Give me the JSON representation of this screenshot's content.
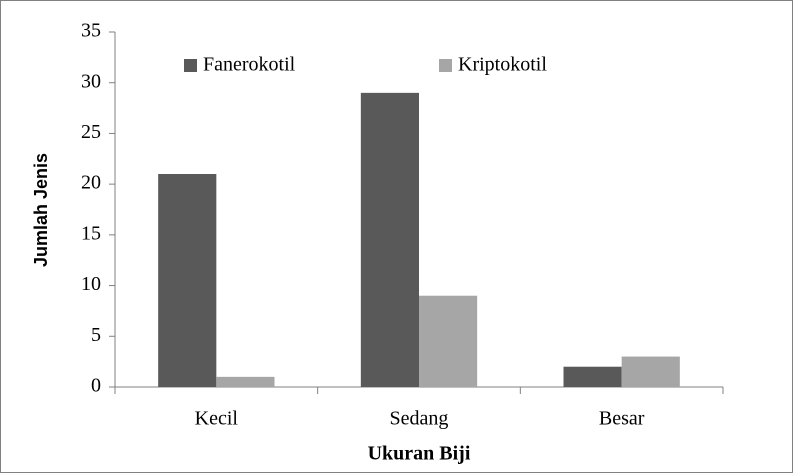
{
  "chart_data": {
    "type": "bar",
    "categories": [
      "Kecil",
      "Sedang",
      "Besar"
    ],
    "series": [
      {
        "name": "Fanerokotil",
        "color": "#595959",
        "values": [
          21,
          29,
          2
        ]
      },
      {
        "name": "Kriptokotil",
        "color": "#a6a6a6",
        "values": [
          1,
          9,
          3
        ]
      }
    ],
    "xlabel": "Ukuran Biji",
    "ylabel": "Jumlah Jenis",
    "ylim": [
      0,
      35
    ],
    "yticks": [
      0,
      5,
      10,
      15,
      20,
      25,
      30,
      35
    ],
    "grid": false,
    "legend": "top-left"
  }
}
